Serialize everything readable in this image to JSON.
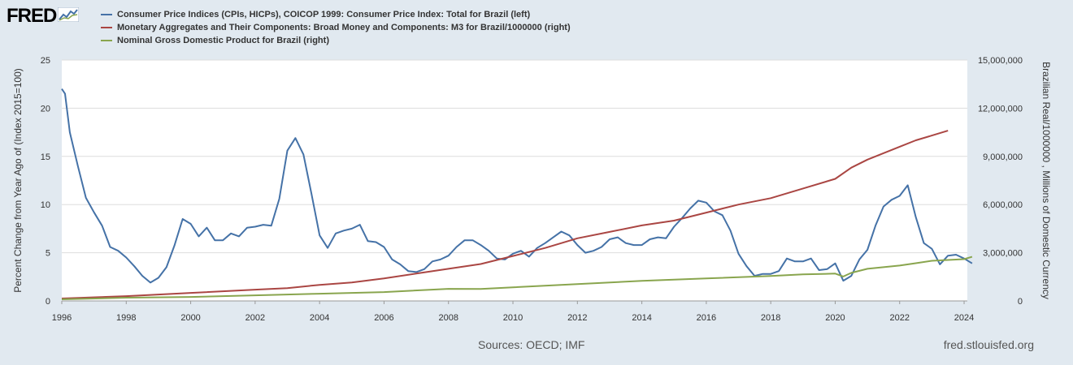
{
  "header": {
    "logo_text": "FRED",
    "logo_icon": "fred-chart-icon"
  },
  "colors": {
    "background": "#e1e9f0",
    "plot_background": "#ffffff",
    "grid": "#dddddd",
    "cpi": "#4572a7",
    "m3": "#aa4643",
    "gdp": "#89a54e"
  },
  "chart_data": {
    "type": "line",
    "legend_position": "top-left",
    "grid": true,
    "x_ticks": [
      "1996",
      "1998",
      "2000",
      "2002",
      "2004",
      "2006",
      "2008",
      "2010",
      "2012",
      "2014",
      "2016",
      "2018",
      "2020",
      "2022",
      "2024"
    ],
    "xlim": [
      1996,
      2024.1
    ],
    "left_axis": {
      "label": "Percent Change from Year Ago of (Index 2015=100)",
      "ylim": [
        0,
        25
      ],
      "ticks": [
        "0",
        "5",
        "10",
        "15",
        "20",
        "25"
      ]
    },
    "right_axis": {
      "label": "Brazilian Real/1000000 , Millions of Domestic Currency",
      "ylim": [
        0,
        15000000
      ],
      "ticks": [
        "0",
        "3,000,000",
        "6,000,000",
        "9,000,000",
        "12,000,000",
        "15,000,000"
      ]
    },
    "series": [
      {
        "name": "Consumer Price Indices (CPIs, HICPs), COICOP 1999: Consumer Price Index: Total for Brazil (left)",
        "axis": "left",
        "x": [
          1996.0,
          1996.1,
          1996.25,
          1996.5,
          1996.75,
          1997.0,
          1997.25,
          1997.5,
          1997.75,
          1998.0,
          1998.25,
          1998.5,
          1998.75,
          1999.0,
          1999.25,
          1999.5,
          1999.75,
          2000.0,
          2000.25,
          2000.5,
          2000.75,
          2001.0,
          2001.25,
          2001.5,
          2001.75,
          2002.0,
          2002.25,
          2002.5,
          2002.75,
          2003.0,
          2003.25,
          2003.5,
          2003.75,
          2004.0,
          2004.25,
          2004.5,
          2004.75,
          2005.0,
          2005.25,
          2005.5,
          2005.75,
          2006.0,
          2006.25,
          2006.5,
          2006.75,
          2007.0,
          2007.25,
          2007.5,
          2007.75,
          2008.0,
          2008.25,
          2008.5,
          2008.75,
          2009.0,
          2009.25,
          2009.5,
          2009.75,
          2010.0,
          2010.25,
          2010.5,
          2010.75,
          2011.0,
          2011.25,
          2011.5,
          2011.75,
          2012.0,
          2012.25,
          2012.5,
          2012.75,
          2013.0,
          2013.25,
          2013.5,
          2013.75,
          2014.0,
          2014.25,
          2014.5,
          2014.75,
          2015.0,
          2015.25,
          2015.5,
          2015.75,
          2016.0,
          2016.25,
          2016.5,
          2016.75,
          2017.0,
          2017.25,
          2017.5,
          2017.75,
          2018.0,
          2018.25,
          2018.5,
          2018.75,
          2019.0,
          2019.25,
          2019.5,
          2019.75,
          2020.0,
          2020.25,
          2020.5,
          2020.75,
          2021.0,
          2021.25,
          2021.5,
          2021.75,
          2022.0,
          2022.25,
          2022.5,
          2022.75,
          2023.0,
          2023.25,
          2023.5,
          2023.75,
          2024.0,
          2024.25
        ],
        "values": [
          22.0,
          21.5,
          17.5,
          14.0,
          10.7,
          9.2,
          7.8,
          5.6,
          5.2,
          4.5,
          3.6,
          2.6,
          1.9,
          2.4,
          3.5,
          5.8,
          8.5,
          8.0,
          6.7,
          7.6,
          6.3,
          6.3,
          7.0,
          6.7,
          7.6,
          7.7,
          7.9,
          7.8,
          10.6,
          15.6,
          16.9,
          15.2,
          11.1,
          6.8,
          5.5,
          7.0,
          7.3,
          7.5,
          7.9,
          6.2,
          6.1,
          5.6,
          4.3,
          3.8,
          3.1,
          3.0,
          3.3,
          4.1,
          4.3,
          4.7,
          5.6,
          6.3,
          6.3,
          5.8,
          5.2,
          4.4,
          4.3,
          4.9,
          5.2,
          4.6,
          5.5,
          6.0,
          6.6,
          7.2,
          6.8,
          5.8,
          5.0,
          5.2,
          5.6,
          6.4,
          6.6,
          6.0,
          5.8,
          5.8,
          6.4,
          6.6,
          6.5,
          7.7,
          8.6,
          9.6,
          10.4,
          10.2,
          9.3,
          8.9,
          7.3,
          4.9,
          3.6,
          2.6,
          2.8,
          2.8,
          3.1,
          4.4,
          4.1,
          4.1,
          4.4,
          3.2,
          3.3,
          3.9,
          2.1,
          2.6,
          4.3,
          5.3,
          7.8,
          9.8,
          10.5,
          10.9,
          12.0,
          8.7,
          6.0,
          5.4,
          3.8,
          4.7,
          4.8,
          4.4,
          3.9
        ]
      },
      {
        "name": "Monetary Aggregates and Their Components: Broad Money and Components: M3 for Brazil/1000000 (right)",
        "axis": "right",
        "x": [
          1996,
          1998,
          2000,
          2002,
          2003,
          2004,
          2005,
          2006,
          2007,
          2008,
          2009,
          2010,
          2011,
          2012,
          2013,
          2014,
          2015,
          2016,
          2017,
          2018,
          2019,
          2020,
          2020.5,
          2021,
          2022,
          2022.5,
          2023,
          2023.5
        ],
        "values": [
          150000,
          300000,
          500000,
          700000,
          800000,
          1000000,
          1150000,
          1400000,
          1700000,
          2000000,
          2300000,
          2800000,
          3300000,
          3900000,
          4300000,
          4700000,
          5000000,
          5500000,
          6000000,
          6400000,
          7000000,
          7600000,
          8300000,
          8800000,
          9600000,
          10000000,
          10300000,
          10600000
        ]
      },
      {
        "name": "Nominal Gross Domestic Product for Brazil (right)",
        "axis": "right",
        "x": [
          1996,
          1998,
          2000,
          2002,
          2004,
          2006,
          2008,
          2009,
          2010,
          2012,
          2014,
          2016,
          2018,
          2019,
          2020,
          2020.25,
          2020.5,
          2021,
          2022,
          2022.5,
          2023,
          2024,
          2024.25
        ],
        "values": [
          100000,
          200000,
          250000,
          350000,
          450000,
          550000,
          750000,
          740000,
          850000,
          1050000,
          1250000,
          1400000,
          1550000,
          1650000,
          1700000,
          1520000,
          1750000,
          2000000,
          2200000,
          2350000,
          2500000,
          2600000,
          2750000
        ]
      }
    ]
  },
  "footer": {
    "sources": "Sources: OECD; IMF",
    "site": "fred.stlouisfed.org"
  }
}
